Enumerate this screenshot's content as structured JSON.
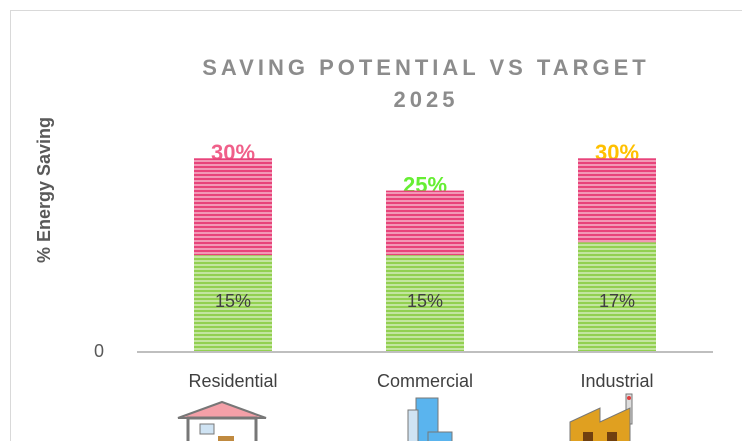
{
  "chart_data": {
    "type": "stacked-bar",
    "title": "SAVING POTENTIAL VS TARGET 2025",
    "y_label": "% Energy Saving",
    "categories": [
      "Residential",
      "Commercial",
      "Industrial"
    ],
    "series": [
      {
        "color": "#92d050",
        "values": [
          15,
          15,
          17
        ],
        "value_labels": [
          "15%",
          "15%",
          "17%"
        ]
      },
      {
        "color": "#e8437a",
        "values": [
          15,
          10,
          13
        ]
      }
    ],
    "totals": [
      30,
      25,
      30
    ],
    "total_labels": [
      "30%",
      "25%",
      "30%"
    ],
    "total_colors": [
      "#f0608a",
      "#66ee33",
      "#ffc000"
    ],
    "ylim": [
      0,
      35
    ],
    "yticks": [
      0
    ]
  }
}
